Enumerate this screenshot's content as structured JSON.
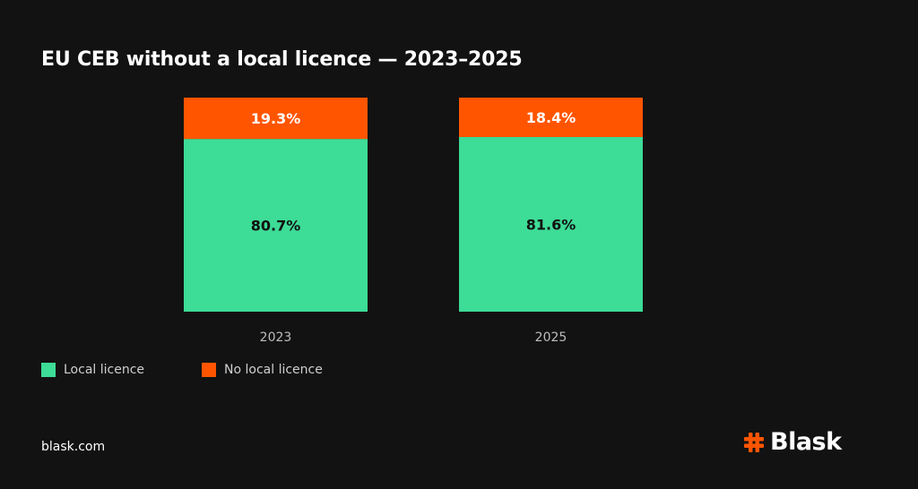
{
  "colors": {
    "background": "#121212",
    "local": "#3DDC97",
    "no_local": "#FF5500",
    "tick_label": "#bdbdbd"
  },
  "chart_data": {
    "type": "bar",
    "stacked": true,
    "title": "EU CEB without a local licence — 2023–2025",
    "categories": [
      "2023",
      "2025"
    ],
    "series": [
      {
        "name": "Local licence",
        "values": [
          80.7,
          81.6
        ],
        "labels": [
          "80.7%",
          "81.6%"
        ],
        "color": "#3DDC97"
      },
      {
        "name": "No local licence",
        "values": [
          19.3,
          18.4
        ],
        "labels": [
          "19.3%",
          "18.4%"
        ],
        "color": "#FF5500"
      }
    ],
    "ylim": [
      0,
      100
    ],
    "xlabel": "",
    "ylabel": "",
    "grid": false,
    "legend": "bottom-left"
  },
  "legend": {
    "items": [
      {
        "label": "Local licence",
        "icon": "square-green"
      },
      {
        "label": "No local licence",
        "icon": "square-orange"
      }
    ]
  },
  "footer": {
    "url": "blask.com",
    "brand": "Blask",
    "brand_icon": "hash-icon"
  }
}
